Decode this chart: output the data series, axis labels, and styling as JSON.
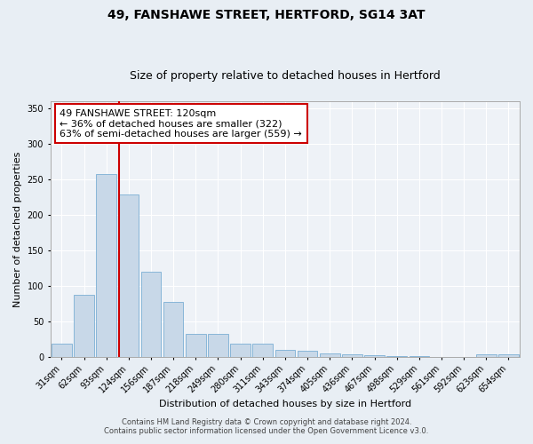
{
  "title1": "49, FANSHAWE STREET, HERTFORD, SG14 3AT",
  "title2": "Size of property relative to detached houses in Hertford",
  "xlabel": "Distribution of detached houses by size in Hertford",
  "ylabel": "Number of detached properties",
  "bar_labels": [
    "31sqm",
    "62sqm",
    "93sqm",
    "124sqm",
    "156sqm",
    "187sqm",
    "218sqm",
    "249sqm",
    "280sqm",
    "311sqm",
    "343sqm",
    "374sqm",
    "405sqm",
    "436sqm",
    "467sqm",
    "498sqm",
    "529sqm",
    "561sqm",
    "592sqm",
    "623sqm",
    "654sqm"
  ],
  "bar_values": [
    18,
    87,
    257,
    229,
    120,
    78,
    32,
    32,
    19,
    19,
    10,
    8,
    5,
    3,
    2,
    1,
    1,
    0,
    0,
    3,
    3
  ],
  "bar_color": "#c8d8e8",
  "bar_edge_color": "#7bafd4",
  "vline_color": "#cc0000",
  "annotation_text": "49 FANSHAWE STREET: 120sqm\n← 36% of detached houses are smaller (322)\n63% of semi-detached houses are larger (559) →",
  "annotation_box_color": "#ffffff",
  "annotation_edge_color": "#cc0000",
  "ylim": [
    0,
    360
  ],
  "yticks": [
    0,
    50,
    100,
    150,
    200,
    250,
    300,
    350
  ],
  "footer_line1": "Contains HM Land Registry data © Crown copyright and database right 2024.",
  "footer_line2": "Contains public sector information licensed under the Open Government Licence v3.0.",
  "bg_color": "#e8eef4",
  "plot_bg_color": "#eef2f7",
  "grid_color": "#ffffff",
  "title1_fontsize": 10,
  "title2_fontsize": 9,
  "xlabel_fontsize": 8,
  "ylabel_fontsize": 8,
  "tick_fontsize": 7,
  "footer_fontsize": 6,
  "annotation_fontsize": 8
}
